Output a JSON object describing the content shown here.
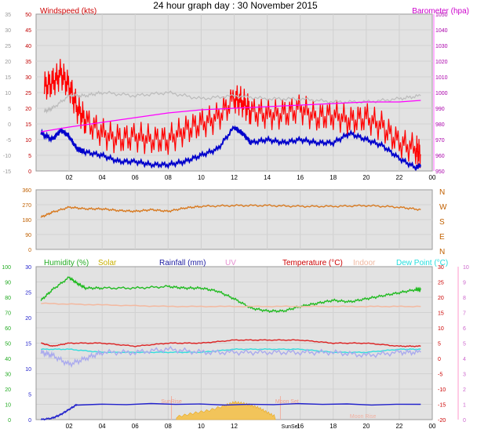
{
  "page": {
    "title": "24 hour graph day : 30 November 2015"
  },
  "chart_data": [
    {
      "id": "wind_baro",
      "type": "line",
      "x_ticks": [
        "02",
        "04",
        "06",
        "08",
        "10",
        "12",
        "14",
        "16",
        "18",
        "20",
        "22",
        "00"
      ],
      "left_axis": {
        "label": "Windspeed (kts)",
        "ticks": [
          0,
          5,
          10,
          15,
          20,
          25,
          30,
          35,
          40,
          45,
          50
        ],
        "range": [
          0,
          50
        ]
      },
      "outer_left_axis": {
        "ticks": [
          -15,
          -10,
          -5,
          0,
          5,
          10,
          15,
          20,
          25,
          30,
          35
        ],
        "range": [
          -15,
          35
        ]
      },
      "right_axis": {
        "label": "Barometer (hpa)",
        "ticks": [
          950,
          960,
          970,
          980,
          990,
          1000,
          1010,
          1020,
          1030,
          1040,
          1050
        ],
        "range": [
          950,
          1050
        ]
      },
      "series": [
        {
          "key": "gust",
          "color": "#ff0000",
          "axis": "left",
          "x": [
            0.5,
            1,
            1.5,
            2,
            2.5,
            3,
            4,
            5,
            6,
            7,
            8,
            9,
            10,
            11,
            12,
            12.5,
            13,
            14,
            15,
            16,
            17,
            18,
            19,
            20,
            21,
            22,
            23,
            23.3
          ],
          "y": [
            27,
            28,
            31,
            27,
            20,
            16,
            12,
            10,
            11,
            10,
            10,
            13,
            15,
            17,
            23,
            22,
            19,
            18,
            18,
            20,
            17,
            18,
            16,
            17,
            14,
            9,
            7,
            5
          ]
        },
        {
          "key": "average",
          "color": "#0000cc",
          "axis": "left",
          "x": [
            0.3,
            1,
            1.5,
            2,
            2.5,
            3,
            4,
            5,
            6,
            7,
            8,
            9,
            10,
            11,
            12,
            12.5,
            13,
            14,
            15,
            16,
            17,
            18,
            19,
            20,
            21,
            22,
            23,
            23.3
          ],
          "y": [
            12,
            10,
            13,
            11,
            7,
            6,
            5,
            3,
            3,
            2,
            2,
            3,
            5,
            7,
            14,
            12,
            9,
            10,
            9,
            10,
            9,
            9,
            12,
            10,
            8,
            4,
            1,
            2
          ]
        },
        {
          "key": "gray",
          "color": "#bbbbbb",
          "axis": "left",
          "x": [
            0.5,
            1,
            2,
            3,
            4,
            6,
            8,
            10,
            12,
            14,
            16,
            18,
            20,
            22,
            23.3
          ],
          "y": [
            19,
            20,
            24,
            24,
            25,
            24,
            25,
            23,
            24,
            23,
            23,
            22,
            22,
            23,
            24
          ]
        },
        {
          "key": "barometer",
          "color": "#ff00ff",
          "axis": "right",
          "x": [
            0.3,
            2,
            4,
            6,
            8,
            10,
            12,
            14,
            16,
            18,
            20,
            22,
            23.3
          ],
          "y": [
            975,
            978,
            981,
            984,
            987,
            989,
            990,
            991,
            992,
            993,
            994,
            994,
            995
          ]
        }
      ]
    },
    {
      "id": "wind_dir",
      "type": "line",
      "left_axis": {
        "ticks": [
          0,
          90,
          180,
          270,
          360
        ],
        "range": [
          0,
          360
        ]
      },
      "right_axis": {
        "ticks": [
          "N",
          "W",
          "S",
          "E",
          "N"
        ]
      },
      "series": [
        {
          "key": "direction",
          "color": "#d87a20",
          "x": [
            0.3,
            1,
            2,
            3,
            4,
            5,
            6,
            7,
            8,
            9,
            10,
            12,
            14,
            16,
            18,
            20,
            22,
            23.3
          ],
          "y": [
            195,
            225,
            255,
            245,
            245,
            235,
            230,
            240,
            230,
            250,
            260,
            265,
            265,
            260,
            260,
            265,
            255,
            240
          ]
        }
      ]
    },
    {
      "id": "thermo",
      "type": "line",
      "legend": [
        "Humidity (%)",
        "Solar",
        "Rainfall (mm)",
        "UV",
        "Temperature (°C)",
        "Indoor",
        "Dew Point (°C)"
      ],
      "outer_left_axis": {
        "ticks": [
          0,
          10,
          20,
          30,
          40,
          50,
          60,
          70,
          80,
          90,
          100
        ],
        "range": [
          0,
          100
        ]
      },
      "inner_left_axis": {
        "ticks": [
          0,
          5,
          10,
          15,
          20,
          25,
          30
        ],
        "range": [
          0,
          30
        ]
      },
      "inner_right_axis": {
        "ticks": [
          -20,
          -15,
          -10,
          -5,
          0,
          5,
          10,
          15,
          20,
          25,
          30
        ],
        "range": [
          -20,
          30
        ]
      },
      "outer_right_axis": {
        "ticks": [
          0,
          1,
          2,
          3,
          4,
          5,
          6,
          7,
          8,
          9,
          10
        ],
        "range": [
          0,
          10
        ]
      },
      "x_ticks": [
        "02",
        "04",
        "06",
        "08",
        "10",
        "12",
        "14",
        "16",
        "18",
        "20",
        "22",
        "00"
      ],
      "annotations": [
        "SunRise",
        "Moon Set",
        "SunSet",
        "Moon Rise"
      ],
      "series": [
        {
          "key": "humidity",
          "color": "#22bb22",
          "axis": "outer_left",
          "x": [
            0.3,
            1,
            2,
            2.5,
            3,
            4,
            6,
            8,
            9,
            10,
            11,
            12,
            13,
            14,
            15,
            16,
            17,
            18,
            19,
            20,
            21,
            22,
            23,
            23.3
          ],
          "y": [
            78,
            85,
            93,
            89,
            86,
            86,
            86,
            87,
            86,
            86,
            84,
            79,
            73,
            71,
            71,
            74,
            76,
            78,
            77,
            79,
            81,
            83,
            85,
            85
          ]
        },
        {
          "key": "indoor",
          "color": "#f3b9a0",
          "axis": "inner_right",
          "x": [
            0.3,
            4,
            8,
            12,
            16,
            20,
            23.3
          ],
          "y": [
            18,
            17.5,
            17,
            17,
            17,
            17,
            17
          ]
        },
        {
          "key": "temperature",
          "color": "#dd2222",
          "axis": "inner_right",
          "x": [
            0.3,
            1,
            2,
            4,
            6,
            8,
            10,
            12,
            14,
            16,
            18,
            20,
            22,
            23.3
          ],
          "y": [
            5,
            4,
            5,
            5,
            4,
            5,
            5,
            6,
            6,
            6,
            5,
            5,
            4,
            4
          ]
        },
        {
          "key": "dewpoint",
          "color": "#33dddd",
          "axis": "inner_right",
          "x": [
            0.3,
            2,
            4,
            6,
            8,
            10,
            12,
            14,
            16,
            18,
            20,
            22,
            23.3
          ],
          "y": [
            3,
            3,
            2,
            2,
            2,
            2,
            3,
            3,
            3,
            2,
            2,
            3,
            3
          ]
        },
        {
          "key": "dew_low",
          "color": "#aaaaee",
          "axis": "inner_right",
          "x": [
            0.3,
            1,
            2,
            3,
            4,
            6,
            8,
            10,
            12,
            14,
            16,
            18,
            20,
            22,
            23.3
          ],
          "y": [
            2,
            1,
            -2,
            0,
            2,
            2,
            3,
            2,
            2,
            2,
            2,
            2,
            1,
            2,
            2
          ]
        },
        {
          "key": "rainfall",
          "color": "#2222cc",
          "axis": "inner_left",
          "x": [
            0.3,
            1,
            1.5,
            2,
            2.5,
            23.3
          ],
          "y": [
            0,
            0.3,
            1,
            2,
            3,
            3
          ]
        },
        {
          "key": "solar",
          "color": "#f0b000",
          "axis": "inner_left",
          "x": [
            8.5,
            9.5,
            10.5,
            11.5,
            12,
            12.5,
            13,
            13.5,
            14,
            14.5
          ],
          "y": [
            0.5,
            1.2,
            1.8,
            2.8,
            3.4,
            3.2,
            2.8,
            2.3,
            1.4,
            0.6
          ]
        }
      ]
    }
  ]
}
